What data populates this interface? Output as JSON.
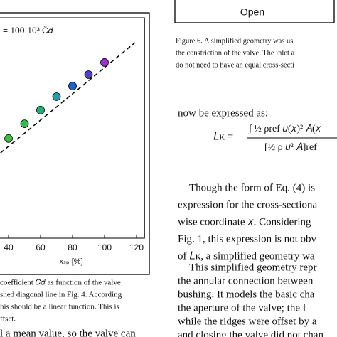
{
  "chart_data": {
    "type": "scatter",
    "annotation": "= 100·10³ Ĉ𝑑",
    "x": [
      40,
      50,
      60,
      70,
      80,
      90,
      100
    ],
    "values": [
      45.2,
      51.9,
      58.1,
      64.2,
      69.0,
      74.2,
      79.7
    ],
    "colors": [
      "#3cc03c",
      "#2cc048",
      "#22b070",
      "#20a0a8",
      "#2060d0",
      "#5040d0",
      "#a030d0"
    ],
    "fit_line": {
      "x": [
        35,
        119
      ],
      "values": [
        38.7,
        88.7
      ]
    },
    "xlim": [
      30,
      125
    ],
    "ylim": [
      0,
      100
    ],
    "xticks": [
      40,
      60,
      80,
      100,
      120
    ],
    "xlabel": "xₛₚ [%]"
  },
  "figure6": {
    "panel_label": "Open",
    "caption": [
      "Figure 6. A simplified geometry was us",
      "the constriction of the valve. The inlet a",
      "do not need to have an equal cross-secti"
    ]
  },
  "left_caption": [
    "coefficient 𝐶𝑑 as function of the valve",
    "shed diagonal line in Fig. 4. According",
    "his should be a linear function. This is",
    "ffset."
  ],
  "left_trailing": "l a mean value, so the valve can",
  "body": {
    "intro": "now be expressed as:",
    "equation": {
      "lhs": "𝐿κ =",
      "numerator": "∫ ½ ρref 𝑢(𝑥)² 𝐴(𝑥",
      "denominator": "[½ ρ 𝑢² 𝐴]ref"
    },
    "paragraphs": [
      [
        "Though the form of Eq. (4) is",
        "expression for the cross-sectiona",
        "wise coordinate 𝑥. Considering",
        "Fig. 1, this expression is not obv",
        "of 𝐿κ, a simplified geometry wa"
      ],
      [
        "This simplified geometry repr",
        "the annular connection between",
        "bushing. It models the basic cha",
        "the aperture of the valve; the f",
        "while the ridges were offset by a",
        "and closing the valve did not chan"
      ]
    ]
  }
}
